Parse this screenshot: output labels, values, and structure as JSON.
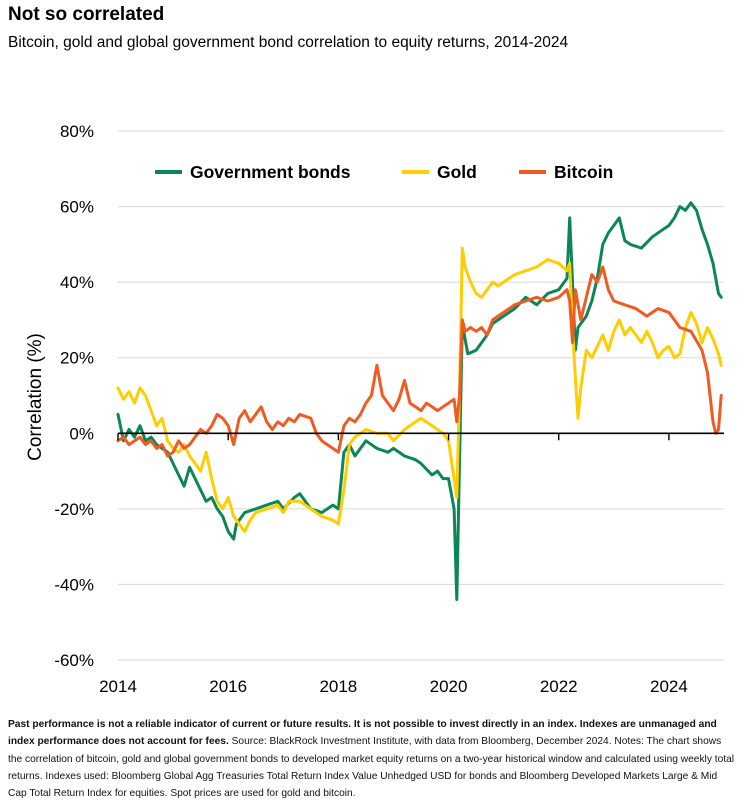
{
  "header": {
    "title": "Not so correlated",
    "subtitle": "Bitcoin, gold and global government bond correlation to equity returns, 2014-2024"
  },
  "footnote": {
    "bold": "Past performance is not a reliable indicator of current or future results. It is not possible to invest directly in an index. Indexes are unmanaged and index performance does not account for fees.",
    "text": " Source: BlackRock Investment Institute, with data from Bloomberg, December 2024. Notes: The chart shows the correlation of bitcoin, gold and global government bonds to developed market equity returns on a two-year historical window and calculated using weekly total returns. Indexes used: Bloomberg Global Agg Treasuries Total Return Index Value Unhedged USD for bonds and Bloomberg Developed Markets Large & Mid Cap Total Return Index for equities. Spot prices are used for gold and bitcoin."
  },
  "chart_data": {
    "type": "line",
    "ylabel": "Correlation (%)",
    "xlabel": "",
    "xlim": [
      2014,
      2025
    ],
    "ylim": [
      -60,
      80
    ],
    "x_ticks": [
      2014,
      2016,
      2018,
      2020,
      2022,
      2024
    ],
    "x_tick_labels": [
      "2014",
      "2016",
      "2018",
      "2020",
      "2022",
      "2024"
    ],
    "y_ticks": [
      -60,
      -40,
      -20,
      0,
      20,
      40,
      60,
      80
    ],
    "y_tick_labels": [
      "-60%",
      "-40%",
      "-20%",
      "0%",
      "20%",
      "40%",
      "60%",
      "80%"
    ],
    "grid": "horizontal",
    "legend_position": "top",
    "series": [
      {
        "name": "Government bonds",
        "color": "#0A8754",
        "points": [
          [
            2014.0,
            5
          ],
          [
            2014.1,
            -2
          ],
          [
            2014.2,
            1
          ],
          [
            2014.3,
            -1
          ],
          [
            2014.4,
            2
          ],
          [
            2014.5,
            -2
          ],
          [
            2014.6,
            -1
          ],
          [
            2014.7,
            -3
          ],
          [
            2014.8,
            -4
          ],
          [
            2014.9,
            -5
          ],
          [
            2015.0,
            -8
          ],
          [
            2015.1,
            -11
          ],
          [
            2015.2,
            -14
          ],
          [
            2015.3,
            -9
          ],
          [
            2015.4,
            -12
          ],
          [
            2015.5,
            -15
          ],
          [
            2015.6,
            -18
          ],
          [
            2015.7,
            -17
          ],
          [
            2015.8,
            -20
          ],
          [
            2015.9,
            -22
          ],
          [
            2016.0,
            -26
          ],
          [
            2016.1,
            -28
          ],
          [
            2016.15,
            -24
          ],
          [
            2016.3,
            -21
          ],
          [
            2016.5,
            -20
          ],
          [
            2016.7,
            -19
          ],
          [
            2016.9,
            -18
          ],
          [
            2017.0,
            -20
          ],
          [
            2017.2,
            -17
          ],
          [
            2017.3,
            -16
          ],
          [
            2017.5,
            -20
          ],
          [
            2017.7,
            -21
          ],
          [
            2017.9,
            -19
          ],
          [
            2018.0,
            -20
          ],
          [
            2018.1,
            -5
          ],
          [
            2018.2,
            -3
          ],
          [
            2018.3,
            -6
          ],
          [
            2018.5,
            -2
          ],
          [
            2018.7,
            -4
          ],
          [
            2018.9,
            -5
          ],
          [
            2019.0,
            -4
          ],
          [
            2019.2,
            -6
          ],
          [
            2019.4,
            -7
          ],
          [
            2019.5,
            -8
          ],
          [
            2019.7,
            -11
          ],
          [
            2019.8,
            -10
          ],
          [
            2019.9,
            -12
          ],
          [
            2020.0,
            -12
          ],
          [
            2020.1,
            -20
          ],
          [
            2020.15,
            -44
          ],
          [
            2020.2,
            -6
          ],
          [
            2020.25,
            29
          ],
          [
            2020.35,
            21
          ],
          [
            2020.5,
            22
          ],
          [
            2020.6,
            24
          ],
          [
            2020.7,
            26
          ],
          [
            2020.8,
            29
          ],
          [
            2020.9,
            30
          ],
          [
            2021.0,
            31
          ],
          [
            2021.2,
            33
          ],
          [
            2021.4,
            36
          ],
          [
            2021.6,
            34
          ],
          [
            2021.8,
            37
          ],
          [
            2022.0,
            38
          ],
          [
            2022.15,
            41
          ],
          [
            2022.2,
            57
          ],
          [
            2022.25,
            40
          ],
          [
            2022.3,
            22
          ],
          [
            2022.35,
            28
          ],
          [
            2022.5,
            31
          ],
          [
            2022.6,
            35
          ],
          [
            2022.7,
            41
          ],
          [
            2022.8,
            50
          ],
          [
            2022.9,
            53
          ],
          [
            2023.0,
            55
          ],
          [
            2023.1,
            57
          ],
          [
            2023.2,
            51
          ],
          [
            2023.3,
            50
          ],
          [
            2023.5,
            49
          ],
          [
            2023.7,
            52
          ],
          [
            2023.9,
            54
          ],
          [
            2024.0,
            55
          ],
          [
            2024.1,
            57
          ],
          [
            2024.2,
            60
          ],
          [
            2024.3,
            59
          ],
          [
            2024.4,
            61
          ],
          [
            2024.5,
            59
          ],
          [
            2024.6,
            54
          ],
          [
            2024.7,
            50
          ],
          [
            2024.8,
            45
          ],
          [
            2024.9,
            37
          ],
          [
            2024.95,
            36
          ]
        ]
      },
      {
        "name": "Gold",
        "color": "#FFCD00",
        "points": [
          [
            2014.0,
            12
          ],
          [
            2014.1,
            9
          ],
          [
            2014.2,
            11
          ],
          [
            2014.3,
            8
          ],
          [
            2014.4,
            12
          ],
          [
            2014.5,
            10
          ],
          [
            2014.6,
            6
          ],
          [
            2014.7,
            2
          ],
          [
            2014.8,
            4
          ],
          [
            2014.9,
            -2
          ],
          [
            2015.0,
            -4
          ],
          [
            2015.1,
            -5
          ],
          [
            2015.2,
            -3
          ],
          [
            2015.3,
            -6
          ],
          [
            2015.4,
            -8
          ],
          [
            2015.5,
            -10
          ],
          [
            2015.6,
            -5
          ],
          [
            2015.7,
            -12
          ],
          [
            2015.8,
            -18
          ],
          [
            2015.9,
            -20
          ],
          [
            2016.0,
            -17
          ],
          [
            2016.1,
            -22
          ],
          [
            2016.2,
            -24
          ],
          [
            2016.3,
            -26
          ],
          [
            2016.4,
            -23
          ],
          [
            2016.5,
            -21
          ],
          [
            2016.7,
            -20
          ],
          [
            2016.9,
            -19
          ],
          [
            2017.0,
            -21
          ],
          [
            2017.1,
            -18
          ],
          [
            2017.3,
            -18
          ],
          [
            2017.5,
            -20
          ],
          [
            2017.7,
            -22
          ],
          [
            2017.9,
            -23
          ],
          [
            2018.0,
            -24
          ],
          [
            2018.1,
            -15
          ],
          [
            2018.2,
            -3
          ],
          [
            2018.3,
            -1
          ],
          [
            2018.5,
            1
          ],
          [
            2018.7,
            0
          ],
          [
            2018.9,
            0
          ],
          [
            2019.0,
            -2
          ],
          [
            2019.2,
            1
          ],
          [
            2019.4,
            3
          ],
          [
            2019.5,
            4
          ],
          [
            2019.7,
            2
          ],
          [
            2019.9,
            0
          ],
          [
            2020.0,
            -2
          ],
          [
            2020.1,
            -12
          ],
          [
            2020.15,
            -17
          ],
          [
            2020.2,
            12
          ],
          [
            2020.25,
            49
          ],
          [
            2020.3,
            44
          ],
          [
            2020.4,
            40
          ],
          [
            2020.5,
            37
          ],
          [
            2020.6,
            36
          ],
          [
            2020.7,
            38
          ],
          [
            2020.8,
            40
          ],
          [
            2020.9,
            39
          ],
          [
            2021.0,
            40
          ],
          [
            2021.2,
            42
          ],
          [
            2021.4,
            43
          ],
          [
            2021.6,
            44
          ],
          [
            2021.8,
            46
          ],
          [
            2022.0,
            45
          ],
          [
            2022.15,
            43
          ],
          [
            2022.2,
            45
          ],
          [
            2022.25,
            28
          ],
          [
            2022.3,
            15
          ],
          [
            2022.35,
            4
          ],
          [
            2022.4,
            12
          ],
          [
            2022.5,
            22
          ],
          [
            2022.6,
            20
          ],
          [
            2022.7,
            23
          ],
          [
            2022.8,
            26
          ],
          [
            2022.9,
            22
          ],
          [
            2023.0,
            27
          ],
          [
            2023.1,
            30
          ],
          [
            2023.2,
            26
          ],
          [
            2023.3,
            28
          ],
          [
            2023.4,
            26
          ],
          [
            2023.5,
            24
          ],
          [
            2023.6,
            27
          ],
          [
            2023.7,
            24
          ],
          [
            2023.8,
            20
          ],
          [
            2023.9,
            22
          ],
          [
            2024.0,
            23
          ],
          [
            2024.1,
            20
          ],
          [
            2024.2,
            21
          ],
          [
            2024.3,
            28
          ],
          [
            2024.4,
            32
          ],
          [
            2024.5,
            29
          ],
          [
            2024.6,
            24
          ],
          [
            2024.7,
            28
          ],
          [
            2024.8,
            25
          ],
          [
            2024.9,
            21
          ],
          [
            2024.95,
            18
          ]
        ]
      },
      {
        "name": "Bitcoin",
        "color": "#F15A22",
        "points": [
          [
            2014.0,
            -2
          ],
          [
            2014.1,
            -1
          ],
          [
            2014.2,
            -3
          ],
          [
            2014.3,
            -2
          ],
          [
            2014.4,
            -1
          ],
          [
            2014.5,
            -3
          ],
          [
            2014.6,
            -2
          ],
          [
            2014.7,
            -4
          ],
          [
            2014.8,
            -3
          ],
          [
            2014.9,
            -6
          ],
          [
            2015.0,
            -5
          ],
          [
            2015.1,
            -2
          ],
          [
            2015.2,
            -4
          ],
          [
            2015.3,
            -3
          ],
          [
            2015.4,
            -1
          ],
          [
            2015.5,
            1
          ],
          [
            2015.6,
            0
          ],
          [
            2015.7,
            2
          ],
          [
            2015.8,
            5
          ],
          [
            2015.9,
            4
          ],
          [
            2016.0,
            2
          ],
          [
            2016.1,
            -3
          ],
          [
            2016.2,
            4
          ],
          [
            2016.3,
            6
          ],
          [
            2016.4,
            3
          ],
          [
            2016.5,
            5
          ],
          [
            2016.6,
            7
          ],
          [
            2016.7,
            3
          ],
          [
            2016.8,
            1
          ],
          [
            2016.9,
            3
          ],
          [
            2017.0,
            2
          ],
          [
            2017.1,
            4
          ],
          [
            2017.2,
            3
          ],
          [
            2017.3,
            5
          ],
          [
            2017.5,
            4
          ],
          [
            2017.6,
            0
          ],
          [
            2017.7,
            -2
          ],
          [
            2017.8,
            -3
          ],
          [
            2017.9,
            -4
          ],
          [
            2018.0,
            -5
          ],
          [
            2018.1,
            2
          ],
          [
            2018.2,
            4
          ],
          [
            2018.3,
            3
          ],
          [
            2018.4,
            5
          ],
          [
            2018.5,
            8
          ],
          [
            2018.6,
            10
          ],
          [
            2018.7,
            18
          ],
          [
            2018.8,
            10
          ],
          [
            2018.9,
            8
          ],
          [
            2019.0,
            6
          ],
          [
            2019.1,
            9
          ],
          [
            2019.2,
            14
          ],
          [
            2019.3,
            8
          ],
          [
            2019.4,
            7
          ],
          [
            2019.5,
            6
          ],
          [
            2019.6,
            8
          ],
          [
            2019.7,
            7
          ],
          [
            2019.8,
            6
          ],
          [
            2019.9,
            7
          ],
          [
            2020.0,
            8
          ],
          [
            2020.1,
            9
          ],
          [
            2020.15,
            3
          ],
          [
            2020.2,
            10
          ],
          [
            2020.25,
            30
          ],
          [
            2020.3,
            27
          ],
          [
            2020.4,
            28
          ],
          [
            2020.5,
            27
          ],
          [
            2020.6,
            28
          ],
          [
            2020.7,
            26
          ],
          [
            2020.8,
            30
          ],
          [
            2020.9,
            31
          ],
          [
            2021.0,
            32
          ],
          [
            2021.2,
            34
          ],
          [
            2021.4,
            35
          ],
          [
            2021.6,
            36
          ],
          [
            2021.8,
            35
          ],
          [
            2022.0,
            36
          ],
          [
            2022.15,
            38
          ],
          [
            2022.2,
            35
          ],
          [
            2022.25,
            24
          ],
          [
            2022.3,
            38
          ],
          [
            2022.4,
            30
          ],
          [
            2022.5,
            36
          ],
          [
            2022.6,
            42
          ],
          [
            2022.7,
            40
          ],
          [
            2022.8,
            44
          ],
          [
            2022.9,
            38
          ],
          [
            2023.0,
            35
          ],
          [
            2023.2,
            34
          ],
          [
            2023.4,
            33
          ],
          [
            2023.6,
            31
          ],
          [
            2023.8,
            33
          ],
          [
            2024.0,
            32
          ],
          [
            2024.2,
            28
          ],
          [
            2024.4,
            27
          ],
          [
            2024.6,
            22
          ],
          [
            2024.7,
            16
          ],
          [
            2024.8,
            3
          ],
          [
            2024.85,
            0
          ],
          [
            2024.9,
            1
          ],
          [
            2024.95,
            10
          ]
        ]
      }
    ]
  }
}
